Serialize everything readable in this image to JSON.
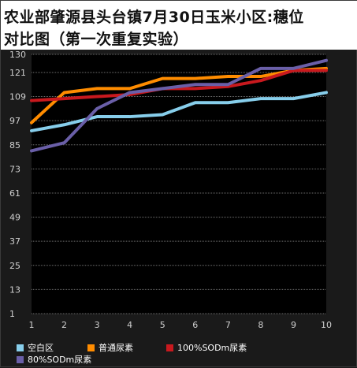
{
  "title_lines": [
    "农业部肇源县头台镇7月30日玉米小区:穗位",
    "对比图（第一次重复实验）"
  ],
  "colors": {
    "background": "#1a1a1a",
    "plot_background": "#000000",
    "grid": "#6e6e6e",
    "tick_text": "#d0d0d0"
  },
  "chart_data": {
    "type": "line",
    "title": "农业部肇源县头台镇7月30日玉米小区:穗位对比图（第一次重复实验）",
    "x": [
      1,
      2,
      3,
      4,
      5,
      6,
      7,
      8,
      9,
      10
    ],
    "x_tick_labels": [
      "1",
      "2",
      "3",
      "4",
      "5",
      "6",
      "7",
      "8",
      "9",
      "10"
    ],
    "y_ticks": [
      1,
      13,
      25,
      37,
      49,
      61,
      73,
      85,
      97,
      109,
      121,
      130
    ],
    "y_tick_labels": [
      "1",
      "13",
      "25",
      "37",
      "49",
      "61",
      "73",
      "85",
      "97",
      "109",
      "121",
      "130"
    ],
    "ylim": [
      1,
      130
    ],
    "grid": true,
    "legend_position": "bottom",
    "series": [
      {
        "name": "空白区",
        "color": "#87ceeb",
        "values": [
          92,
          95,
          99,
          99,
          100,
          106,
          106,
          108,
          108,
          111
        ]
      },
      {
        "name": "普通尿素",
        "color": "#ff8c00",
        "values": [
          96,
          111,
          113,
          113,
          118,
          118,
          119,
          119,
          122,
          123
        ]
      },
      {
        "name": "100%SODm尿素",
        "color": "#c8191e",
        "values": [
          107,
          108,
          109,
          110,
          113,
          113,
          114,
          117,
          122,
          122
        ]
      },
      {
        "name": "80%SODm尿素",
        "color": "#6a5fa8",
        "values": [
          82,
          86,
          103,
          111,
          113,
          115,
          115,
          123,
          123,
          127
        ]
      }
    ]
  }
}
